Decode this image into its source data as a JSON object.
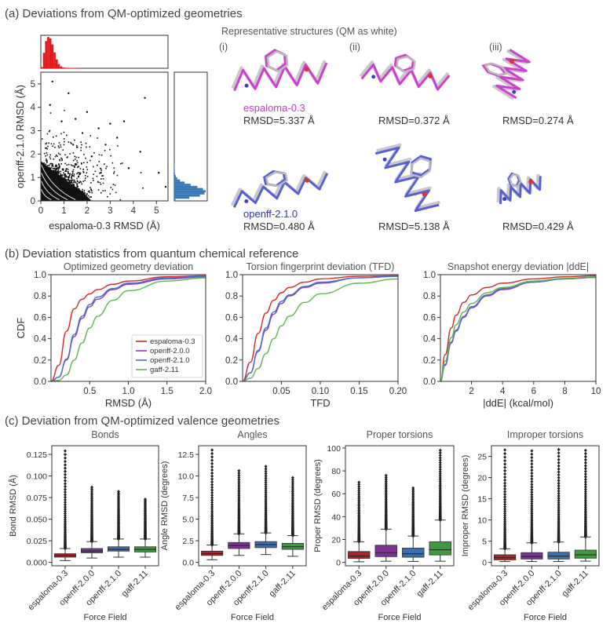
{
  "panel_titles": {
    "a": "(a) Deviations from QM-optimized geometries",
    "b": "(b) Deviation statistics from quantum chemical reference",
    "c": "(c) Deviation from QM-optimized valence geometries"
  },
  "structures": {
    "title": "Representative structures (QM as white)",
    "columns": [
      "(i)",
      "(ii)",
      "(iii)"
    ],
    "rows": [
      {
        "ff": "espaloma-0.3",
        "color": "#cc33cc",
        "rmsd": [
          "RMSD=5.337 Å",
          "RMSD=0.372 Å",
          "RMSD=0.274 Å"
        ]
      },
      {
        "ff": "openff-2.1.0",
        "color": "#3333aa",
        "rmsd": [
          "RMSD=0.480 Å",
          "RMSD=5.138 Å",
          "RMSD=0.429 Å"
        ]
      }
    ]
  },
  "colors": {
    "espaloma-0.3": "#d62728",
    "openff-2.0.0": "#8a3ec2",
    "openff-2.1.0": "#4a6fd0",
    "gaff-2.11": "#5cb84a",
    "scatter_red": "#e31a1c",
    "scatter_blue": "#3a78b5"
  },
  "chart_data": [
    {
      "type": "scatter",
      "xlabel": "espaloma-0.3 RMSD (Å)",
      "ylabel": "openff-2.1.0 RMSD (Å)",
      "xlim": [
        0,
        5.5
      ],
      "ylim": [
        0,
        5.5
      ],
      "xticks": [
        0,
        1,
        2,
        3,
        4,
        5
      ],
      "yticks": [
        0,
        1,
        2,
        3,
        4,
        5
      ],
      "points": [
        [
          1.2,
          4.6
        ],
        [
          1.5,
          3.5
        ],
        [
          2.0,
          3.8
        ],
        [
          2.5,
          3.1
        ],
        [
          3.0,
          3.3
        ],
        [
          3.6,
          3.4
        ],
        [
          4.5,
          4.4
        ],
        [
          4.3,
          2.1
        ],
        [
          5.1,
          1.2
        ],
        [
          5.4,
          0.6
        ],
        [
          0.5,
          5.1
        ],
        [
          2.8,
          2.4
        ],
        [
          3.3,
          2.7
        ],
        [
          1.8,
          2.9
        ],
        [
          0.9,
          3.4
        ],
        [
          0.4,
          4.1
        ],
        [
          2.2,
          1.9
        ],
        [
          2.6,
          1.2
        ],
        [
          3.8,
          1.4
        ],
        [
          1.4,
          2.4
        ]
      ],
      "marginal_x_hist": "espaloma-0.3",
      "marginal_y_hist": "openff-2.1.0"
    },
    {
      "type": "line",
      "title": "Optimized geometry deviation",
      "xlabel": "RMSD (Å)",
      "ylabel": "CDF",
      "xlim": [
        0,
        2.0
      ],
      "ylim": [
        0,
        1.0
      ],
      "xticks": [
        "0.5",
        "1.0",
        "1.5",
        "2.0"
      ],
      "xtick_values": [
        0.5,
        1.0,
        1.5,
        2.0
      ],
      "yticks": [
        "0.0",
        "0.2",
        "0.4",
        "0.6",
        "0.8",
        "1.0"
      ],
      "legend": [
        "espaloma-0.3",
        "openff-2.0.0",
        "openff-2.1.0",
        "gaff-2.11"
      ],
      "series": [
        {
          "name": "espaloma-0.3",
          "x": [
            0,
            0.1,
            0.2,
            0.3,
            0.4,
            0.5,
            0.6,
            0.8,
            1.0,
            1.5,
            2.0
          ],
          "y": [
            0,
            0.15,
            0.47,
            0.68,
            0.77,
            0.82,
            0.86,
            0.91,
            0.94,
            0.98,
            0.99
          ]
        },
        {
          "name": "openff-2.0.0",
          "x": [
            0,
            0.1,
            0.2,
            0.3,
            0.4,
            0.5,
            0.6,
            0.8,
            1.0,
            1.5,
            2.0
          ],
          "y": [
            0,
            0.04,
            0.2,
            0.42,
            0.59,
            0.7,
            0.77,
            0.86,
            0.91,
            0.96,
            0.98
          ]
        },
        {
          "name": "openff-2.1.0",
          "x": [
            0,
            0.1,
            0.2,
            0.3,
            0.4,
            0.5,
            0.6,
            0.8,
            1.0,
            1.5,
            2.0
          ],
          "y": [
            0,
            0.04,
            0.21,
            0.44,
            0.61,
            0.72,
            0.79,
            0.87,
            0.92,
            0.97,
            0.985
          ]
        },
        {
          "name": "gaff-2.11",
          "x": [
            0,
            0.1,
            0.2,
            0.3,
            0.4,
            0.5,
            0.6,
            0.8,
            1.0,
            1.5,
            2.0
          ],
          "y": [
            0,
            0.01,
            0.06,
            0.2,
            0.36,
            0.5,
            0.61,
            0.76,
            0.85,
            0.94,
            0.97
          ]
        }
      ]
    },
    {
      "type": "line",
      "title": "Torsion fingerprint deviation (TFD)",
      "xlabel": "TFD",
      "xlim": [
        0,
        0.2
      ],
      "ylim": [
        0,
        1.0
      ],
      "xticks": [
        "0.05",
        "0.10",
        "0.15",
        "0.20"
      ],
      "xtick_values": [
        0.05,
        0.1,
        0.15,
        0.2
      ],
      "yticks": [
        "0.0",
        "0.2",
        "0.4",
        "0.6",
        "0.8",
        "1.0"
      ],
      "series": [
        {
          "name": "espaloma-0.3",
          "x": [
            0,
            0.01,
            0.02,
            0.03,
            0.04,
            0.05,
            0.06,
            0.08,
            0.1,
            0.15,
            0.2
          ],
          "y": [
            0,
            0.18,
            0.45,
            0.64,
            0.76,
            0.83,
            0.88,
            0.93,
            0.96,
            0.985,
            0.99
          ]
        },
        {
          "name": "openff-2.0.0",
          "x": [
            0,
            0.01,
            0.02,
            0.03,
            0.04,
            0.05,
            0.06,
            0.08,
            0.1,
            0.15,
            0.2
          ],
          "y": [
            0,
            0.08,
            0.28,
            0.48,
            0.63,
            0.73,
            0.8,
            0.88,
            0.92,
            0.97,
            0.985
          ]
        },
        {
          "name": "openff-2.1.0",
          "x": [
            0,
            0.01,
            0.02,
            0.03,
            0.04,
            0.05,
            0.06,
            0.08,
            0.1,
            0.15,
            0.2
          ],
          "y": [
            0,
            0.08,
            0.29,
            0.5,
            0.65,
            0.75,
            0.81,
            0.89,
            0.93,
            0.97,
            0.985
          ]
        },
        {
          "name": "gaff-2.11",
          "x": [
            0,
            0.01,
            0.02,
            0.03,
            0.04,
            0.05,
            0.06,
            0.08,
            0.1,
            0.15,
            0.2
          ],
          "y": [
            0,
            0.03,
            0.12,
            0.26,
            0.4,
            0.52,
            0.61,
            0.74,
            0.82,
            0.92,
            0.96
          ]
        }
      ]
    },
    {
      "type": "line",
      "title": "Snapshot energy deviation |ddE|",
      "xlabel": "|ddE| (kcal/mol)",
      "xlim": [
        0,
        10
      ],
      "ylim": [
        0,
        1.0
      ],
      "xticks": [
        "2",
        "4",
        "6",
        "8",
        "10"
      ],
      "xtick_values": [
        2,
        4,
        6,
        8,
        10
      ],
      "yticks": [
        "0.0",
        "0.2",
        "0.4",
        "0.6",
        "0.8",
        "1.0"
      ],
      "series": [
        {
          "name": "espaloma-0.3",
          "x": [
            0,
            0.3,
            0.7,
            1,
            1.5,
            2,
            3,
            4,
            6,
            8,
            10
          ],
          "y": [
            0,
            0.25,
            0.5,
            0.62,
            0.74,
            0.81,
            0.88,
            0.92,
            0.96,
            0.98,
            0.99
          ]
        },
        {
          "name": "openff-2.0.0",
          "x": [
            0,
            0.3,
            0.7,
            1,
            1.5,
            2,
            3,
            4,
            6,
            8,
            10
          ],
          "y": [
            0,
            0.15,
            0.36,
            0.47,
            0.6,
            0.69,
            0.8,
            0.86,
            0.93,
            0.96,
            0.975
          ]
        },
        {
          "name": "openff-2.1.0",
          "x": [
            0,
            0.3,
            0.7,
            1,
            1.5,
            2,
            3,
            4,
            6,
            8,
            10
          ],
          "y": [
            0,
            0.16,
            0.37,
            0.48,
            0.61,
            0.7,
            0.81,
            0.87,
            0.93,
            0.96,
            0.975
          ]
        },
        {
          "name": "gaff-2.11",
          "x": [
            0,
            0.3,
            0.7,
            1,
            1.5,
            2,
            3,
            4,
            6,
            8,
            10
          ],
          "y": [
            0,
            0.19,
            0.41,
            0.53,
            0.65,
            0.73,
            0.83,
            0.88,
            0.94,
            0.965,
            0.98
          ]
        }
      ]
    },
    {
      "type": "box",
      "title": "Bonds",
      "ylabel": "Bond RMSD (Å)",
      "xlabel": "Force Field",
      "categories": [
        "espaloma-0.3",
        "openff-2.0.0",
        "openff-2.1.0",
        "gaff-2.11"
      ],
      "ylim": [
        -0.004,
        0.135
      ],
      "yticks": [
        "0.000",
        "0.025",
        "0.050",
        "0.075",
        "0.100",
        "0.125"
      ],
      "ytick_values": [
        0,
        0.025,
        0.05,
        0.075,
        0.1,
        0.125
      ],
      "boxes": [
        {
          "min": 0.002,
          "q1": 0.006,
          "median": 0.008,
          "q3": 0.01,
          "max": 0.016,
          "fliermax": 0.129
        },
        {
          "min": 0.005,
          "q1": 0.011,
          "median": 0.013,
          "q3": 0.016,
          "max": 0.024,
          "fliermax": 0.087
        },
        {
          "min": 0.006,
          "q1": 0.013,
          "median": 0.015,
          "q3": 0.018,
          "max": 0.027,
          "fliermax": 0.082
        },
        {
          "min": 0.006,
          "q1": 0.012,
          "median": 0.015,
          "q3": 0.018,
          "max": 0.027,
          "fliermax": 0.073
        }
      ]
    },
    {
      "type": "box",
      "title": "Angles",
      "ylabel": "Angle RMSD (degrees)",
      "xlabel": "Force Field",
      "categories": [
        "espaloma-0.3",
        "openff-2.0.0",
        "openff-2.1.0",
        "gaff-2.11"
      ],
      "ylim": [
        -0.4,
        13.5
      ],
      "yticks": [
        "0.0",
        "2.5",
        "5.0",
        "7.5",
        "10.0",
        "12.5"
      ],
      "ytick_values": [
        0,
        2.5,
        5,
        7.5,
        10,
        12.5
      ],
      "boxes": [
        {
          "min": 0.3,
          "q1": 0.8,
          "median": 1.0,
          "q3": 1.3,
          "max": 2.0,
          "fliermax": 13.0
        },
        {
          "min": 0.8,
          "q1": 1.6,
          "median": 1.95,
          "q3": 2.3,
          "max": 3.3,
          "fliermax": 10.6
        },
        {
          "min": 0.9,
          "q1": 1.7,
          "median": 2.05,
          "q3": 2.4,
          "max": 3.4,
          "fliermax": 11.1
        },
        {
          "min": 0.7,
          "q1": 1.5,
          "median": 1.8,
          "q3": 2.2,
          "max": 3.1,
          "fliermax": 9.8
        }
      ]
    },
    {
      "type": "box",
      "title": "Proper torsions",
      "ylabel": "Proper RMSD (degrees)",
      "xlabel": "Force Field",
      "categories": [
        "espaloma-0.3",
        "openff-2.0.0",
        "openff-2.1.0",
        "gaff-2.11"
      ],
      "ylim": [
        -3,
        102
      ],
      "yticks": [
        "0",
        "20",
        "40",
        "60",
        "80",
        "100"
      ],
      "ytick_values": [
        0,
        20,
        40,
        60,
        80,
        100
      ],
      "boxes": [
        {
          "min": 0.5,
          "q1": 3.5,
          "median": 5.5,
          "q3": 9.5,
          "max": 18,
          "fliermax": 70
        },
        {
          "min": 1,
          "q1": 5,
          "median": 8.5,
          "q3": 15,
          "max": 29,
          "fliermax": 76
        },
        {
          "min": 0.8,
          "q1": 4.5,
          "median": 7.5,
          "q3": 12.5,
          "max": 23,
          "fliermax": 65
        },
        {
          "min": 1,
          "q1": 6.5,
          "median": 11,
          "q3": 18,
          "max": 37,
          "fliermax": 98
        }
      ]
    },
    {
      "type": "box",
      "title": "Improper torsions",
      "ylabel": "Improper RMSD (degrees)",
      "xlabel": "Force Field",
      "categories": [
        "espaloma-0.3",
        "openff-2.0.0",
        "openff-2.1.0",
        "gaff-2.11"
      ],
      "ylim": [
        -0.8,
        27.5
      ],
      "yticks": [
        "0",
        "5",
        "10",
        "15",
        "20",
        "25"
      ],
      "ytick_values": [
        0,
        5,
        10,
        15,
        20,
        25
      ],
      "boxes": [
        {
          "min": 0.2,
          "q1": 0.6,
          "median": 1.1,
          "q3": 1.8,
          "max": 3.2,
          "fliermax": 26.5
        },
        {
          "min": 0.2,
          "q1": 0.8,
          "median": 1.4,
          "q3": 2.3,
          "max": 4.6,
          "fliermax": 26.3
        },
        {
          "min": 0.2,
          "q1": 0.8,
          "median": 1.5,
          "q3": 2.4,
          "max": 4.8,
          "fliermax": 26.6
        },
        {
          "min": 0.3,
          "q1": 1.0,
          "median": 1.8,
          "q3": 2.9,
          "max": 6.0,
          "fliermax": 26.4
        }
      ]
    }
  ]
}
